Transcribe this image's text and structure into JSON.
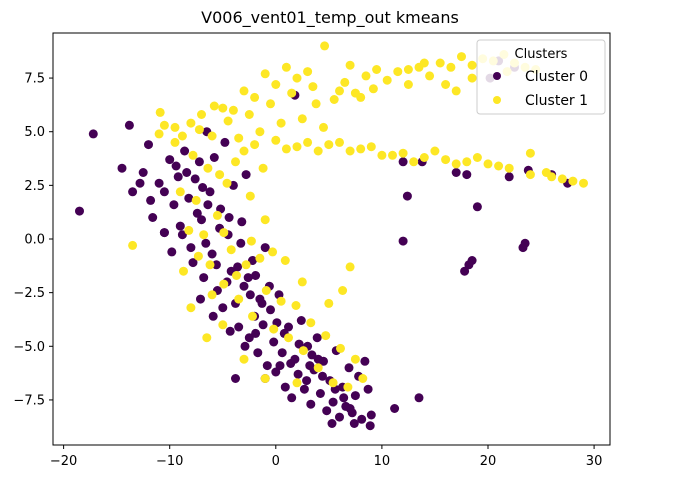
{
  "chart_data": {
    "type": "scatter",
    "title": "V006_vent01_temp_out kmeans",
    "xlabel": "",
    "ylabel": "",
    "xlim": [
      -21,
      31.5
    ],
    "ylim": [
      -9.6,
      9.6
    ],
    "xticks": [
      -20,
      -10,
      0,
      10,
      20,
      30
    ],
    "yticks": [
      -7.5,
      -5.0,
      -2.5,
      0.0,
      2.5,
      5.0,
      7.5
    ],
    "xtick_labels": [
      "−20",
      "−10",
      "0",
      "10",
      "20",
      "30"
    ],
    "ytick_labels": [
      "−7.5",
      "−5.0",
      "−2.5",
      "0.0",
      "2.5",
      "5.0",
      "7.5"
    ],
    "grid": false,
    "legend": {
      "title": "Clusters",
      "placement": "top-right"
    },
    "series": [
      {
        "name": "Cluster 0",
        "color": "#440154",
        "points": [
          [
            -17.2,
            4.9
          ],
          [
            -18.5,
            1.3
          ],
          [
            -14.5,
            3.3
          ],
          [
            -13.8,
            5.3
          ],
          [
            -13.5,
            2.2
          ],
          [
            -12.5,
            3.1
          ],
          [
            -12.0,
            4.4
          ],
          [
            -11.6,
            1.0
          ],
          [
            -11.0,
            2.6
          ],
          [
            -10.5,
            0.3
          ],
          [
            -10.0,
            3.7
          ],
          [
            -9.6,
            1.6
          ],
          [
            -9.2,
            2.9
          ],
          [
            -9.0,
            0.6
          ],
          [
            -8.6,
            4.1
          ],
          [
            -8.2,
            1.9
          ],
          [
            -8.0,
            -0.4
          ],
          [
            -7.6,
            2.8
          ],
          [
            -7.2,
            3.6
          ],
          [
            -7.0,
            0.9
          ],
          [
            -6.8,
            -1.8
          ],
          [
            -6.5,
            5.0
          ],
          [
            -6.2,
            2.2
          ],
          [
            -6.0,
            -0.7
          ],
          [
            -5.8,
            3.8
          ],
          [
            -5.5,
            -2.4
          ],
          [
            -5.2,
            1.4
          ],
          [
            -5.0,
            -3.2
          ],
          [
            -4.8,
            4.5
          ],
          [
            -4.5,
            0.2
          ],
          [
            -4.2,
            -1.5
          ],
          [
            -4.0,
            2.5
          ],
          [
            -3.8,
            -3.0
          ],
          [
            -3.5,
            -4.1
          ],
          [
            -3.2,
            0.8
          ],
          [
            -3.0,
            -2.2
          ],
          [
            -2.8,
            3.0
          ],
          [
            -2.5,
            -4.6
          ],
          [
            -2.2,
            -1.0
          ],
          [
            -2.0,
            -3.6
          ],
          [
            -1.7,
            -5.3
          ],
          [
            -1.5,
            -2.8
          ],
          [
            -1.2,
            -4.0
          ],
          [
            -1.0,
            -0.4
          ],
          [
            -0.8,
            -5.9
          ],
          [
            -0.5,
            -3.3
          ],
          [
            -0.2,
            -4.8
          ],
          [
            0.0,
            -6.2
          ],
          [
            0.3,
            -2.6
          ],
          [
            0.6,
            -5.3
          ],
          [
            0.9,
            -6.9
          ],
          [
            1.2,
            -4.1
          ],
          [
            1.5,
            -7.4
          ],
          [
            1.8,
            -5.6
          ],
          [
            2.1,
            -6.3
          ],
          [
            2.4,
            -3.8
          ],
          [
            2.7,
            -7.0
          ],
          [
            3.0,
            -5.0
          ],
          [
            3.3,
            -7.7
          ],
          [
            3.6,
            -6.1
          ],
          [
            3.9,
            -4.6
          ],
          [
            4.2,
            -7.2
          ],
          [
            4.5,
            -5.7
          ],
          [
            4.8,
            -8.0
          ],
          [
            5.1,
            -6.6
          ],
          [
            5.4,
            -7.6
          ],
          [
            5.7,
            -5.2
          ],
          [
            6.0,
            -8.3
          ],
          [
            6.3,
            -6.9
          ],
          [
            6.6,
            -7.8
          ],
          [
            6.9,
            -6.0
          ],
          [
            7.2,
            -8.1
          ],
          [
            7.5,
            -7.3
          ],
          [
            7.8,
            -6.4
          ],
          [
            8.1,
            -8.4
          ],
          [
            8.4,
            -5.7
          ],
          [
            8.7,
            -7.0
          ],
          [
            9.0,
            -8.2
          ],
          [
            -1.0,
            -6.5
          ],
          [
            -3.8,
            -6.5
          ],
          [
            1.8,
            6.7
          ],
          [
            -10.5,
            0.3
          ],
          [
            -9.8,
            -0.6
          ],
          [
            -8.8,
            0.2
          ],
          [
            -7.8,
            -1.1
          ],
          [
            -7.4,
            1.2
          ],
          [
            -6.6,
            -0.2
          ],
          [
            -6.4,
            1.6
          ],
          [
            -5.6,
            -1.2
          ],
          [
            -5.3,
            0.5
          ],
          [
            -4.6,
            -2.0
          ],
          [
            -4.4,
            1.0
          ],
          [
            -3.6,
            -1.3
          ],
          [
            -3.3,
            -0.2
          ],
          [
            -2.4,
            -2.6
          ],
          [
            -1.9,
            -1.7
          ],
          [
            -1.3,
            -3.0
          ],
          [
            -0.6,
            -2.2
          ],
          [
            0.1,
            -3.9
          ],
          [
            0.8,
            -4.4
          ],
          [
            1.4,
            -5.8
          ],
          [
            2.2,
            -4.9
          ],
          [
            3.4,
            -5.4
          ],
          [
            4.4,
            -6.4
          ],
          [
            5.6,
            -7.0
          ],
          [
            6.4,
            -7.4
          ],
          [
            7.0,
            -7.9
          ],
          [
            11.2,
            -7.9
          ],
          [
            13.5,
            -7.4
          ],
          [
            12.0,
            3.6
          ],
          [
            12.4,
            2.0
          ],
          [
            12.0,
            -0.1
          ],
          [
            13.8,
            3.6
          ],
          [
            17.0,
            3.1
          ],
          [
            18.0,
            3.0
          ],
          [
            19.0,
            1.5
          ],
          [
            18.5,
            -1.0
          ],
          [
            17.8,
            -1.5
          ],
          [
            18.2,
            -1.2
          ],
          [
            23.3,
            -0.4
          ],
          [
            23.5,
            -0.2
          ],
          [
            22.0,
            2.9
          ],
          [
            22.5,
            8.0
          ],
          [
            21.0,
            8.3
          ],
          [
            23.8,
            3.2
          ],
          [
            26.0,
            3.0
          ],
          [
            27.5,
            2.6
          ],
          [
            20.2,
            7.5
          ],
          [
            -10.5,
            2.2
          ],
          [
            -9.4,
            3.4
          ],
          [
            -11.8,
            1.8
          ],
          [
            -8.4,
            3.1
          ],
          [
            -6.9,
            2.4
          ],
          [
            -12.8,
            2.6
          ],
          [
            -7.1,
            -2.8
          ],
          [
            -5.9,
            -3.6
          ],
          [
            -4.3,
            -4.3
          ],
          [
            -2.9,
            -5.0
          ],
          [
            -1.9,
            -4.4
          ],
          [
            0.4,
            -5.9
          ],
          [
            2.9,
            -6.6
          ],
          [
            4.0,
            -5.6
          ],
          [
            5.3,
            -8.6
          ],
          [
            7.4,
            -8.6
          ],
          [
            8.9,
            -8.7
          ],
          [
            3.2,
            -5.9
          ],
          [
            -2.6,
            -1.8
          ]
        ]
      },
      {
        "name": "Cluster 1",
        "color": "#fde725",
        "points": [
          [
            -13.5,
            -0.3
          ],
          [
            -10.9,
            5.9
          ],
          [
            -9.5,
            5.2
          ],
          [
            -8.0,
            5.4
          ],
          [
            -7.2,
            5.1
          ],
          [
            -6.0,
            4.8
          ],
          [
            -5.0,
            6.1
          ],
          [
            -4.5,
            5.5
          ],
          [
            -3.5,
            4.7
          ],
          [
            -2.5,
            5.8
          ],
          [
            -1.5,
            5.0
          ],
          [
            -0.5,
            6.3
          ],
          [
            0.5,
            5.4
          ],
          [
            1.5,
            6.8
          ],
          [
            2.5,
            5.6
          ],
          [
            3.5,
            7.1
          ],
          [
            4.5,
            5.2
          ],
          [
            5.5,
            6.5
          ],
          [
            6.5,
            7.3
          ],
          [
            7.5,
            6.8
          ],
          [
            8.5,
            7.6
          ],
          [
            9.5,
            7.9
          ],
          [
            10.5,
            7.4
          ],
          [
            11.5,
            7.8
          ],
          [
            12.5,
            7.2
          ],
          [
            13.5,
            8.0
          ],
          [
            14.5,
            7.6
          ],
          [
            15.5,
            8.2
          ],
          [
            16.5,
            8.0
          ],
          [
            17.5,
            8.5
          ],
          [
            18.5,
            8.1
          ],
          [
            19.5,
            8.4
          ],
          [
            20.5,
            8.3
          ],
          [
            21.5,
            8.6
          ],
          [
            22.5,
            8.2
          ],
          [
            23.5,
            8.0
          ],
          [
            24.5,
            7.9
          ],
          [
            4.6,
            9.0
          ],
          [
            3.0,
            7.8
          ],
          [
            2.0,
            7.5
          ],
          [
            1.0,
            8.0
          ],
          [
            0.0,
            7.2
          ],
          [
            -1.0,
            7.7
          ],
          [
            -2.0,
            6.6
          ],
          [
            -3.0,
            6.9
          ],
          [
            -4.0,
            6.0
          ],
          [
            -2.0,
            4.4
          ],
          [
            0.0,
            4.6
          ],
          [
            2.0,
            4.3
          ],
          [
            4.0,
            4.1
          ],
          [
            6.0,
            4.5
          ],
          [
            8.0,
            4.2
          ],
          [
            10.0,
            3.9
          ],
          [
            12.0,
            4.0
          ],
          [
            14.0,
            3.8
          ],
          [
            16.0,
            3.7
          ],
          [
            18.0,
            3.6
          ],
          [
            20.0,
            3.5
          ],
          [
            22.0,
            3.3
          ],
          [
            24.0,
            3.0
          ],
          [
            26.0,
            2.9
          ],
          [
            28.0,
            2.7
          ],
          [
            29.0,
            2.6
          ],
          [
            27.0,
            2.8
          ],
          [
            25.5,
            3.1
          ],
          [
            21.0,
            3.4
          ],
          [
            19.0,
            3.8
          ],
          [
            17.0,
            3.5
          ],
          [
            15.0,
            4.1
          ],
          [
            13.0,
            3.6
          ],
          [
            11.0,
            3.9
          ],
          [
            9.0,
            4.3
          ],
          [
            7.0,
            4.1
          ],
          [
            5.0,
            4.4
          ],
          [
            3.0,
            4.5
          ],
          [
            1.0,
            4.2
          ],
          [
            24.0,
            4.0
          ],
          [
            -9.0,
            2.2
          ],
          [
            -8.2,
            0.4
          ],
          [
            -7.5,
            1.8
          ],
          [
            -6.8,
            0.2
          ],
          [
            -6.2,
            -1.2
          ],
          [
            -5.5,
            1.1
          ],
          [
            -4.9,
            -2.1
          ],
          [
            -4.2,
            -0.5
          ],
          [
            -3.5,
            -2.8
          ],
          [
            -2.8,
            -1.2
          ],
          [
            -2.2,
            -3.6
          ],
          [
            -1.5,
            -0.9
          ],
          [
            -0.9,
            -2.4
          ],
          [
            -0.2,
            -4.2
          ],
          [
            0.5,
            -2.9
          ],
          [
            1.2,
            -4.6
          ],
          [
            1.9,
            -3.1
          ],
          [
            2.6,
            -5.2
          ],
          [
            3.3,
            -3.9
          ],
          [
            4.0,
            -6.0
          ],
          [
            4.7,
            -4.5
          ],
          [
            5.4,
            -6.7
          ],
          [
            6.1,
            -5.1
          ],
          [
            6.8,
            -6.9
          ],
          [
            7.5,
            -5.6
          ],
          [
            8.2,
            -6.5
          ],
          [
            5.0,
            -3.0
          ],
          [
            6.3,
            -2.4
          ],
          [
            7.0,
            -1.3
          ],
          [
            -8.0,
            -3.2
          ],
          [
            -6.5,
            -4.6
          ],
          [
            -5.0,
            -4.0
          ],
          [
            -3.0,
            -5.6
          ],
          [
            -1.0,
            -6.5
          ],
          [
            2.0,
            -6.7
          ],
          [
            -6.0,
            -2.6
          ],
          [
            -4.6,
            2.6
          ],
          [
            -3.8,
            3.6
          ],
          [
            -2.4,
            2.0
          ],
          [
            -1.0,
            0.9
          ],
          [
            -0.3,
            -0.6
          ],
          [
            -5.3,
            3.0
          ],
          [
            -7.8,
            3.9
          ],
          [
            -9.5,
            4.5
          ],
          [
            -11.0,
            4.9
          ],
          [
            -10.5,
            5.3
          ],
          [
            -7.0,
            5.8
          ],
          [
            -5.8,
            6.2
          ],
          [
            -6.4,
            3.3
          ],
          [
            -3.0,
            4.1
          ],
          [
            -1.2,
            3.3
          ],
          [
            -8.8,
            4.8
          ],
          [
            14.0,
            8.2
          ],
          [
            12.5,
            7.9
          ],
          [
            8.0,
            6.6
          ],
          [
            9.2,
            7.0
          ],
          [
            16.0,
            7.2
          ],
          [
            17.0,
            6.9
          ],
          [
            18.5,
            7.5
          ],
          [
            21.8,
            7.8
          ],
          [
            6.0,
            6.9
          ],
          [
            7.0,
            8.1
          ],
          [
            3.8,
            6.3
          ],
          [
            -4.9,
            0.3
          ],
          [
            -3.7,
            -1.7
          ],
          [
            -2.3,
            -0.1
          ],
          [
            -7.3,
            -0.8
          ],
          [
            -8.7,
            -1.5
          ],
          [
            0.9,
            -1.0
          ],
          [
            2.5,
            -2.0
          ]
        ]
      }
    ]
  }
}
